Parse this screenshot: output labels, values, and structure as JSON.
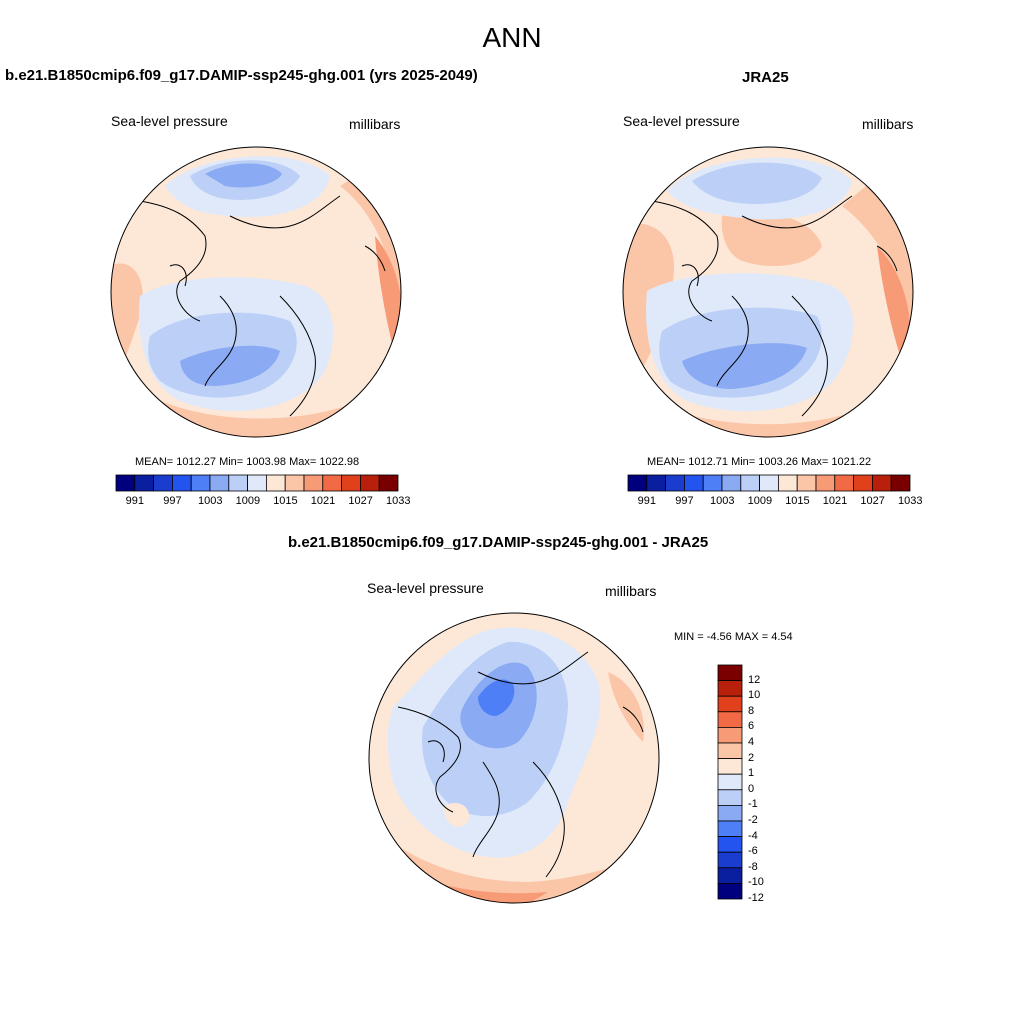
{
  "figure": {
    "title": "ANN"
  },
  "panels": [
    {
      "title": "b.e21.B1850cmip6.f09_g17.DAMIP-ssp245-ghg.001 (yrs 2025-2049)",
      "variable": "Sea-level pressure",
      "units": "millibars",
      "stats": "MEAN= 1012.27  Min= 1003.98  Max= 1022.98"
    },
    {
      "title": "JRA25",
      "variable": "Sea-level pressure",
      "units": "millibars",
      "stats": "MEAN= 1012.71  Min= 1003.26  Max= 1021.22"
    },
    {
      "title": "b.e21.B1850cmip6.f09_g17.DAMIP-ssp245-ghg.001 - JRA25",
      "variable": "Sea-level pressure",
      "units": "millibars",
      "stats": "MIN =  -4.56 MAX =   4.54"
    }
  ],
  "colorbars": {
    "absolute": {
      "colors": [
        "#00007f",
        "#0a1fa0",
        "#1a3ccf",
        "#2454ef",
        "#4e7ff7",
        "#8aaaf4",
        "#bcd0f7",
        "#dfe9fa",
        "#fde8d8",
        "#fbc6a8",
        "#f79a76",
        "#f26a45",
        "#e1401c",
        "#b8200c",
        "#7a0000"
      ],
      "tick_labels": [
        "991",
        "997",
        "1003",
        "1009",
        "1015",
        "1021",
        "1027",
        "1033"
      ]
    },
    "difference": {
      "colors": [
        "#00007f",
        "#0a1fa0",
        "#1a3ccf",
        "#2454ef",
        "#4e7ff7",
        "#8aaaf4",
        "#bcd0f7",
        "#dfe9fa",
        "#fde8d8",
        "#fbc6a8",
        "#f79a76",
        "#f26a45",
        "#e1401c",
        "#b8200c",
        "#7a0000"
      ],
      "tick_labels": [
        "12",
        "10",
        "8",
        "6",
        "4",
        "2",
        "1",
        "0",
        "-1",
        "-2",
        "-4",
        "-6",
        "-8",
        "-10",
        "-12"
      ]
    }
  }
}
